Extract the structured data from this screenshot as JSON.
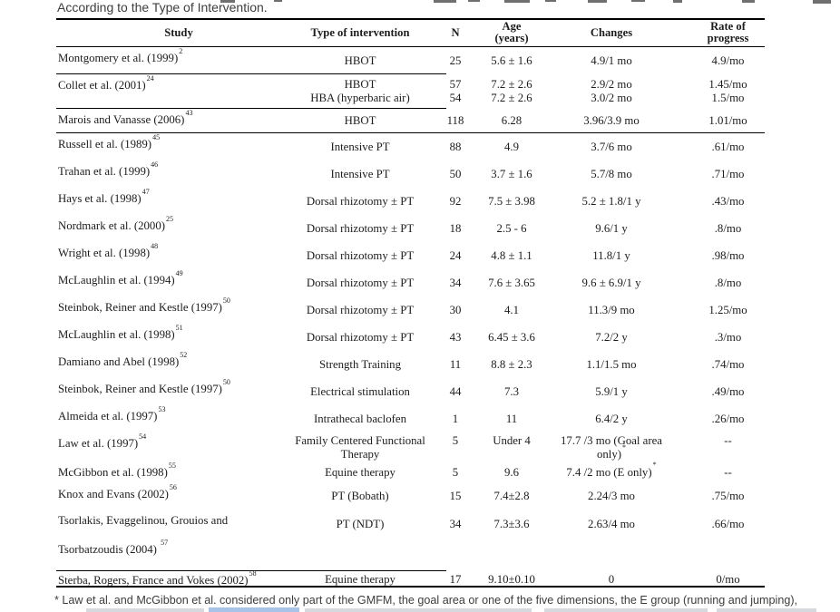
{
  "caption": {
    "visible_line": "According to the Type of Intervention."
  },
  "table": {
    "headers": {
      "study": "Study",
      "intervention": "Type of intervention",
      "n": "N",
      "age": [
        "Age",
        "(years)"
      ],
      "changes": "Changes",
      "rate": [
        "Rate of",
        "progress"
      ]
    },
    "rows": [
      {
        "id": "montgomery",
        "study": [
          {
            "t": "Montgomery et al. (1999)",
            "sup": "2"
          }
        ],
        "cells": {
          "intervention": [
            "HBOT"
          ],
          "n": [
            "25"
          ],
          "age": [
            "5.6 ± 1.6"
          ],
          "changes": [
            "4.9/1 mo"
          ],
          "rate": [
            "4.9/mo"
          ]
        }
      },
      {
        "id": "collet",
        "study": [
          {
            "t": "Collet et al. (2001)",
            "sup": "24"
          }
        ],
        "cells": {
          "intervention": [
            "HBOT",
            "HBA (hyperbaric air)"
          ],
          "n": [
            "57",
            "54"
          ],
          "age": [
            "7.2 ± 2.6",
            "7.2 ± 2.6"
          ],
          "changes": [
            "2.9/2 mo",
            "3.0/2 mo"
          ],
          "rate": [
            "1.45/mo",
            "1.5/mo"
          ]
        }
      },
      {
        "id": "marois",
        "study": [
          {
            "t": "Marois and Vanasse (2006)",
            "sup": "43"
          }
        ],
        "cells": {
          "intervention": [
            "HBOT"
          ],
          "n": [
            "118"
          ],
          "age": [
            "6.28"
          ],
          "changes": [
            "3.96/3.9 mo"
          ],
          "rate": [
            "1.01/mo"
          ]
        }
      },
      {
        "id": "russell",
        "study": [
          {
            "t": "Russell et al. (1989)",
            "sup": "45"
          }
        ],
        "cells": {
          "intervention": [
            "Intensive PT"
          ],
          "n": [
            "88"
          ],
          "age": [
            "4.9"
          ],
          "changes": [
            "3.7/6 mo"
          ],
          "rate": [
            ".61/mo"
          ]
        }
      },
      {
        "id": "trahan",
        "study": [
          {
            "t": "Trahan et al. (1999)",
            "sup": "46"
          }
        ],
        "cells": {
          "intervention": [
            "Intensive PT"
          ],
          "n": [
            "50"
          ],
          "age": [
            "3.7 ± 1.6"
          ],
          "changes": [
            "5.7/8 mo"
          ],
          "rate": [
            ".71/mo"
          ]
        }
      },
      {
        "id": "hays",
        "study": [
          {
            "t": "Hays et al. (1998)",
            "sup": "47"
          }
        ],
        "cells": {
          "intervention": [
            "Dorsal rhizotomy ± PT"
          ],
          "n": [
            "92"
          ],
          "age": [
            "7.5 ± 3.98"
          ],
          "changes": [
            "5.2 ± 1.8/1 y"
          ],
          "rate": [
            ".43/mo"
          ]
        }
      },
      {
        "id": "nordmark",
        "study": [
          {
            "t": "Nordmark et al. (2000)",
            "sup": "25"
          }
        ],
        "cells": {
          "intervention": [
            "Dorsal rhizotomy ± PT"
          ],
          "n": [
            "18"
          ],
          "age": [
            "2.5 - 6"
          ],
          "changes": [
            "9.6/1 y"
          ],
          "rate": [
            ".8/mo"
          ]
        }
      },
      {
        "id": "wright",
        "study": [
          {
            "t": "Wright et al. (1998)",
            "sup": "48"
          }
        ],
        "cells": {
          "intervention": [
            "Dorsal rhizotomy ± PT"
          ],
          "n": [
            "24"
          ],
          "age": [
            "4.8 ± 1.1"
          ],
          "changes": [
            "11.8/1 y"
          ],
          "rate": [
            ".98/mo"
          ]
        }
      },
      {
        "id": "mclaughlin94",
        "study": [
          {
            "t": "McLaughlin et al. (1994)",
            "sup": "49"
          }
        ],
        "cells": {
          "intervention": [
            "Dorsal rhizotomy ± PT"
          ],
          "n": [
            "34"
          ],
          "age": [
            "7.6 ± 3.65"
          ],
          "changes": [
            "9.6 ± 6.9/1 y"
          ],
          "rate": [
            ".8/mo"
          ]
        }
      },
      {
        "id": "steinbok97a",
        "study": [
          {
            "t": "Steinbok, Reiner and Kestle (1997)",
            "sup": "50"
          }
        ],
        "cells": {
          "intervention": [
            "Dorsal rhizotomy ± PT"
          ],
          "n": [
            "30"
          ],
          "age": [
            "4.1"
          ],
          "changes": [
            "11.3/9 mo"
          ],
          "rate": [
            "1.25/mo"
          ]
        }
      },
      {
        "id": "mclaughlin98",
        "study": [
          {
            "t": "McLaughlin et al. (1998)",
            "sup": "51"
          }
        ],
        "cells": {
          "intervention": [
            "Dorsal rhizotomy ± PT"
          ],
          "n": [
            "43"
          ],
          "age": [
            "6.45 ± 3.6"
          ],
          "changes": [
            "7.2/2 y"
          ],
          "rate": [
            ".3/mo"
          ]
        }
      },
      {
        "id": "damiano",
        "study": [
          {
            "t": "Damiano and Abel (1998)",
            "sup": "52"
          }
        ],
        "cells": {
          "intervention": [
            "Strength Training"
          ],
          "n": [
            "11"
          ],
          "age": [
            "8.8 ± 2.3"
          ],
          "changes": [
            "1.1/1.5 mo"
          ],
          "rate": [
            ".74/mo"
          ]
        }
      },
      {
        "id": "steinbok97b",
        "study": [
          {
            "t": "Steinbok, Reiner and Kestle (1997)",
            "sup": "50"
          }
        ],
        "cells": {
          "intervention": [
            "Electrical stimulation"
          ],
          "n": [
            "44"
          ],
          "age": [
            "7.3"
          ],
          "changes": [
            "5.9/1 y"
          ],
          "rate": [
            ".49/mo"
          ]
        }
      },
      {
        "id": "almeida",
        "study": [
          {
            "t": "Almeida et al. (1997)",
            "sup": "53"
          }
        ],
        "cells": {
          "intervention": [
            "Intrathecal baclofen"
          ],
          "n": [
            "1"
          ],
          "age": [
            "11"
          ],
          "changes": [
            "6.4/2 y"
          ],
          "rate": [
            ".26/mo"
          ]
        }
      },
      {
        "id": "law",
        "study": [
          {
            "t": "Law et al. (1997)",
            "sup": "54"
          }
        ],
        "cells": {
          "intervention": [
            "Family Centered Functional",
            "Therapy"
          ],
          "n": [
            "5"
          ],
          "age": [
            "Under 4"
          ],
          "changes": [
            "17.7 /3 mo (Goal area",
            {
              "t": "only)",
              "sup": "*"
            }
          ],
          "rate": [
            "--"
          ]
        }
      },
      {
        "id": "mcgibbon",
        "study": [
          {
            "t": "McGibbon et al. (1998)",
            "sup": "55"
          }
        ],
        "cells": {
          "intervention": [
            "Equine therapy"
          ],
          "n": [
            "5"
          ],
          "age": [
            "9.6"
          ],
          "changes": [
            {
              "t": "7.4 /2 mo (E only)",
              "sup": "*"
            }
          ],
          "rate": [
            "--"
          ]
        }
      },
      {
        "id": "knox",
        "study": [
          {
            "t": "Knox and Evans (2002)",
            "sup": "56"
          }
        ],
        "cells": {
          "intervention": [
            "PT (Bobath)"
          ],
          "n": [
            "15"
          ],
          "age": [
            "7.4±2.8"
          ],
          "changes": [
            "2.24/3 mo"
          ],
          "rate": [
            ".75/mo"
          ]
        }
      },
      {
        "id": "tsorlakis",
        "study": [
          "Tsorlakis, Evaggelinou, Grouios and",
          {
            "t": "Tsorbatzoudis (2004) ",
            "sup": "57"
          }
        ],
        "cells": {
          "intervention": [
            "PT (NDT)"
          ],
          "n": [
            "34"
          ],
          "age": [
            "7.3±3.6"
          ],
          "changes": [
            "2.63/4 mo"
          ],
          "rate": [
            ".66/mo"
          ]
        }
      },
      {
        "id": "sterba",
        "study": [
          {
            "t": "Sterba, Rogers, France and Vokes (2002)",
            "sup": "58"
          }
        ],
        "cells": {
          "intervention": [
            "Equine therapy"
          ],
          "n": [
            "17"
          ],
          "age": [
            "9.10±0.10"
          ],
          "changes": [
            "0"
          ],
          "rate": [
            "0/mo"
          ]
        }
      }
    ]
  },
  "footnote": "* Law et al. and McGibbon et al. considered only part of the GMFM, the goal area or one of the five dimensions, the E group (running and jumping),"
}
